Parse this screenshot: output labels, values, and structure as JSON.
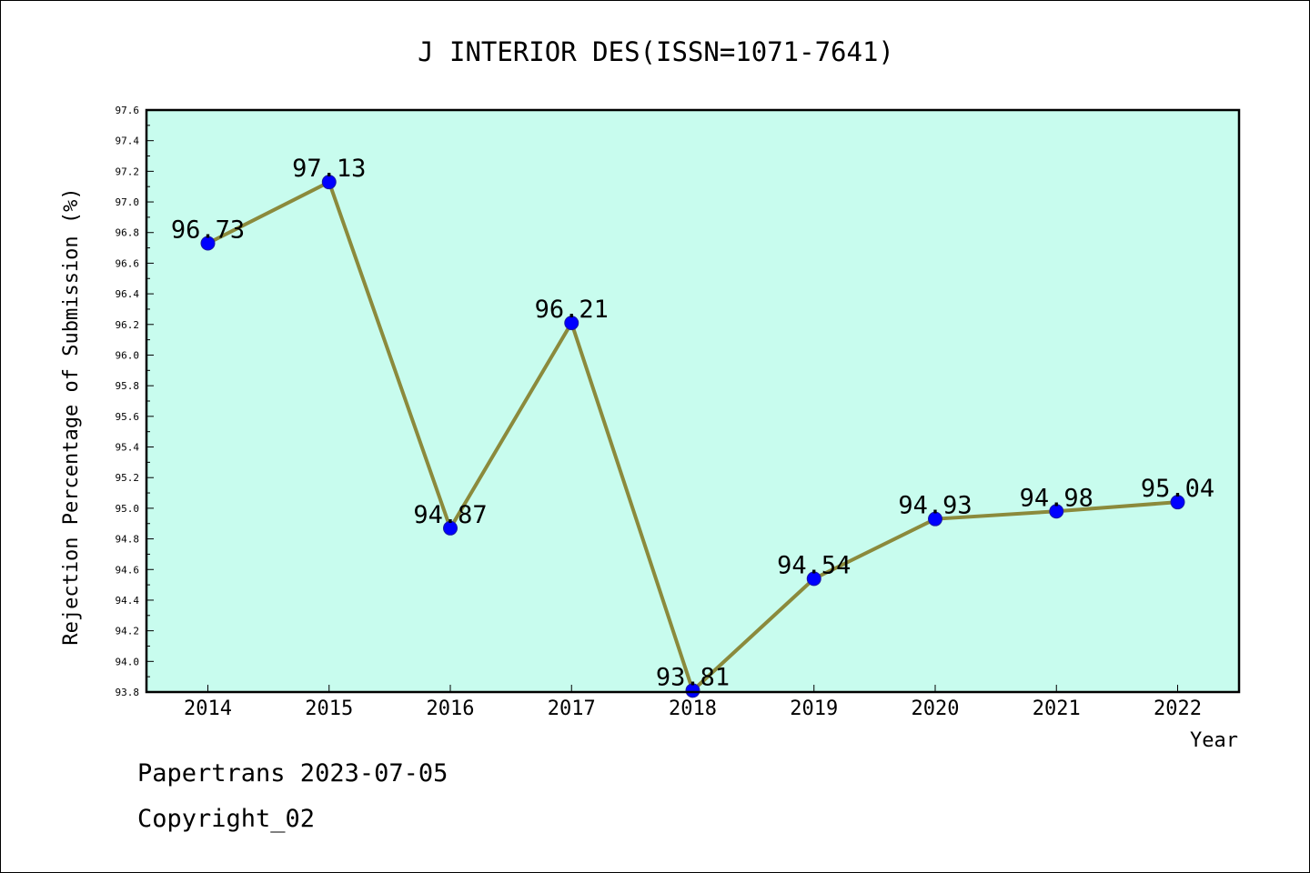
{
  "chart_data": {
    "type": "line",
    "title": "J INTERIOR DES(ISSN=1071-7641)",
    "xlabel": "Year",
    "ylabel": "Rejection Percentage of Submission (%)",
    "categories": [
      "2014",
      "2015",
      "2016",
      "2017",
      "2018",
      "2019",
      "2020",
      "2021",
      "2022"
    ],
    "series": [
      {
        "values": [
          96.73,
          97.13,
          94.87,
          96.21,
          93.81,
          94.54,
          94.93,
          94.98,
          95.04
        ],
        "labels": [
          "96.73",
          "97.13",
          "94.87",
          "96.21",
          "93.81",
          "94.54",
          "94.93",
          "94.98",
          "95.04"
        ]
      }
    ],
    "ylim": [
      93.8,
      97.6
    ],
    "yticks": [
      "93.8",
      "94.0",
      "94.2",
      "94.4",
      "94.6",
      "94.8",
      "95.0",
      "95.2",
      "95.4",
      "95.6",
      "95.8",
      "96.0",
      "96.2",
      "96.4",
      "96.6",
      "96.8",
      "97.0",
      "97.2",
      "97.4",
      "97.6"
    ],
    "grid": false,
    "colors": {
      "plot_background": "#c8fcee",
      "line": "#8b8a3c",
      "marker": "#0000ff",
      "marker_edge": "#1a1aa0"
    }
  },
  "footer": {
    "line1": "Papertrans 2023-07-05",
    "line2": "Copyright_02"
  }
}
